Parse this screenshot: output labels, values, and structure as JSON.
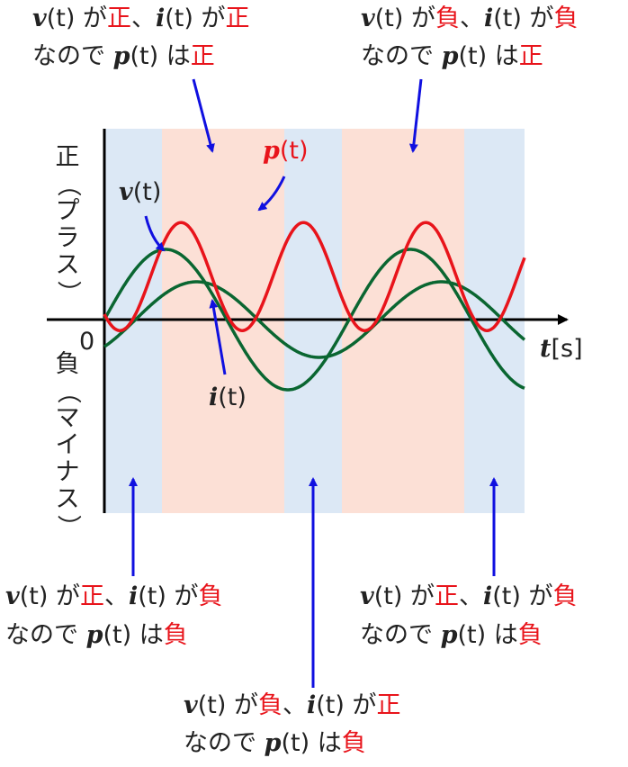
{
  "callouts": {
    "top_left": {
      "v": "v",
      "t": "(t)",
      "ga": " が",
      "v_sign": "正",
      "sep": "、",
      "i": "i",
      "i_sign": "正",
      "line2_pre": "なので ",
      "p": "p",
      "wa": " は",
      "p_sign": "正"
    },
    "top_right": {
      "v": "v",
      "t": "(t)",
      "ga": " が",
      "v_sign": "負",
      "sep": "、",
      "i": "i",
      "i_sign": "負",
      "line2_pre": "なので ",
      "p": "p",
      "wa": " は",
      "p_sign": "正"
    },
    "bottom_left": {
      "v": "v",
      "t": "(t)",
      "ga": " が",
      "v_sign": "正",
      "sep": "、",
      "i": "i",
      "i_sign": "負",
      "line2_pre": "なので ",
      "p": "p",
      "wa": " は",
      "p_sign": "負"
    },
    "bottom_right": {
      "v": "v",
      "t": "(t)",
      "ga": " が",
      "v_sign": "正",
      "sep": "、",
      "i": "i",
      "i_sign": "負",
      "line2_pre": "なので ",
      "p": "p",
      "wa": " は",
      "p_sign": "負"
    },
    "bottom_center": {
      "v": "v",
      "t": "(t)",
      "ga": " が",
      "v_sign": "負",
      "sep": "、",
      "i": "i",
      "i_sign": "正",
      "line2_pre": "なので ",
      "p": "p",
      "wa": " は",
      "p_sign": "負"
    }
  },
  "curve_labels": {
    "p": "p",
    "v": "v",
    "i": "i",
    "t": "(t)"
  },
  "axis": {
    "origin": "0",
    "time_var": "t",
    "time_unit": "[s]",
    "positive_label": [
      "正",
      "（",
      "プ",
      "ラ",
      "ス",
      "）"
    ],
    "negative_label": [
      "負",
      "（",
      "マ",
      "イ",
      "ナ",
      "ス",
      "）"
    ]
  },
  "colors": {
    "voltage": "#0a6631",
    "current": "#0a6631",
    "power": "#e8141b",
    "arrow": "#1010e0",
    "positive_band": "#fce0d6",
    "negative_band": "#dce8f5",
    "emphasis": "#e8141b"
  }
}
